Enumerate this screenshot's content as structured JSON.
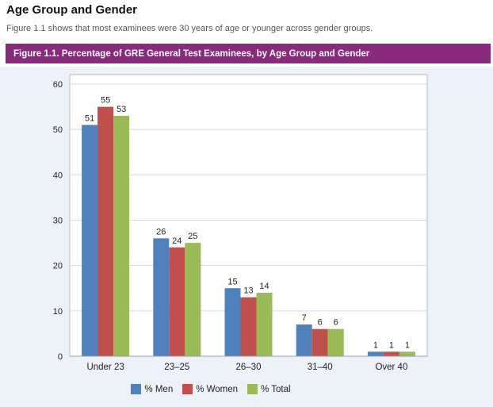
{
  "page": {
    "title": "Age Group and Gender",
    "subtitle": "Figure 1.1 shows that most examinees were 30 years of age or younger across gender groups."
  },
  "figure": {
    "header": "Figure 1.1. Percentage of GRE General Test Examinees, by Age Group and Gender"
  },
  "colors": {
    "header_bg": "#8a2a7c",
    "header_text": "#ffffff",
    "panel_bg": "#edf1f8",
    "plot_bg": "#ffffff",
    "plot_border": "#b3b9c2",
    "gridline": "#d7dadf",
    "axis_line": "#9aa0a8",
    "label_text": "#231f20",
    "men": "#4f81bd",
    "women": "#c0504d",
    "total": "#9bbb59"
  },
  "chart_data": {
    "type": "bar",
    "title": "Figure 1.1. Percentage of GRE General Test Examinees, by Age Group and Gender",
    "categories": [
      "Under 23",
      "23–25",
      "26–30",
      "31–40",
      "Over 40"
    ],
    "series": [
      {
        "name": "% Men",
        "color_key": "men",
        "values": [
          51,
          26,
          15,
          7,
          1
        ]
      },
      {
        "name": "% Women",
        "color_key": "women",
        "values": [
          55,
          24,
          13,
          6,
          1
        ]
      },
      {
        "name": "% Total",
        "color_key": "total",
        "values": [
          53,
          25,
          14,
          6,
          1
        ]
      }
    ],
    "xlabel": "",
    "ylabel": "",
    "ylim": [
      0,
      60
    ],
    "yticks": [
      0,
      10,
      20,
      30,
      40,
      50,
      60
    ],
    "grid": true,
    "value_labels": true,
    "legend_position": "bottom"
  }
}
